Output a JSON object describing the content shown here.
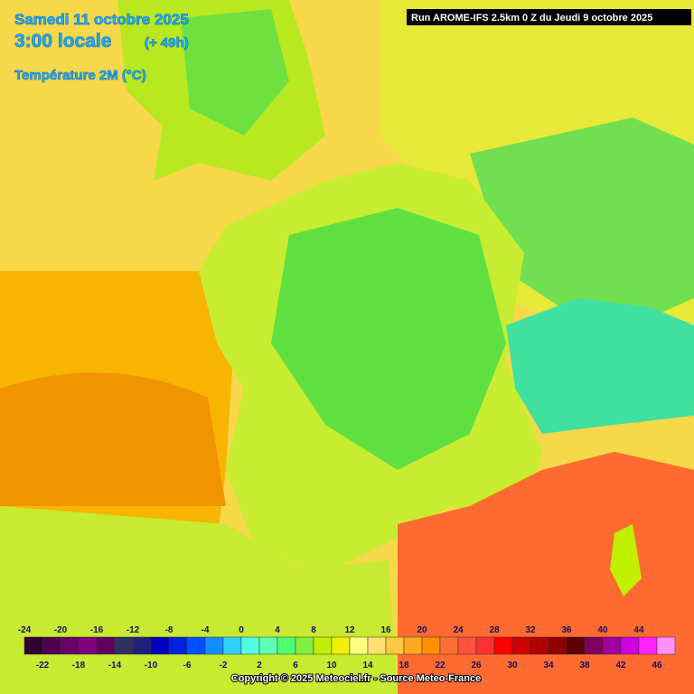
{
  "header": {
    "date": "Samedi 11 octobre 2025",
    "time": "3:00 locale",
    "lead": "(+ 49h)",
    "variable": "Température 2M (°C)",
    "run": "Run AROME-IFS 2.5km 0 Z du Jeudi 9 octobre 2025"
  },
  "legend": {
    "top_labels": [
      -24,
      -20,
      -16,
      -12,
      -8,
      -4,
      0,
      4,
      8,
      12,
      16,
      20,
      24,
      28,
      32,
      36,
      40,
      44
    ],
    "bottom_labels": [
      -22,
      -18,
      -14,
      -10,
      -6,
      -2,
      2,
      6,
      10,
      14,
      18,
      22,
      26,
      30,
      34,
      38,
      42,
      46
    ],
    "colors": [
      "#300030",
      "#500050",
      "#6a006a",
      "#800080",
      "#600060",
      "#303060",
      "#202080",
      "#0000c0",
      "#0020e0",
      "#0050ff",
      "#1090ff",
      "#30d0ff",
      "#50ffe0",
      "#60ffb0",
      "#50ff70",
      "#80f040",
      "#c0f000",
      "#f0f000",
      "#ffff80",
      "#ffe070",
      "#ffc840",
      "#ffa820",
      "#ff9000",
      "#ff7030",
      "#ff5040",
      "#ff3030",
      "#ff0000",
      "#d00000",
      "#b00000",
      "#900000",
      "#600000",
      "#800060",
      "#a000a0",
      "#d000e0",
      "#ff20ff",
      "#ff90ff"
    ]
  },
  "footer": {
    "copyright": "Copyright © 2025 Meteociel.fr - Source Meteo-France"
  }
}
